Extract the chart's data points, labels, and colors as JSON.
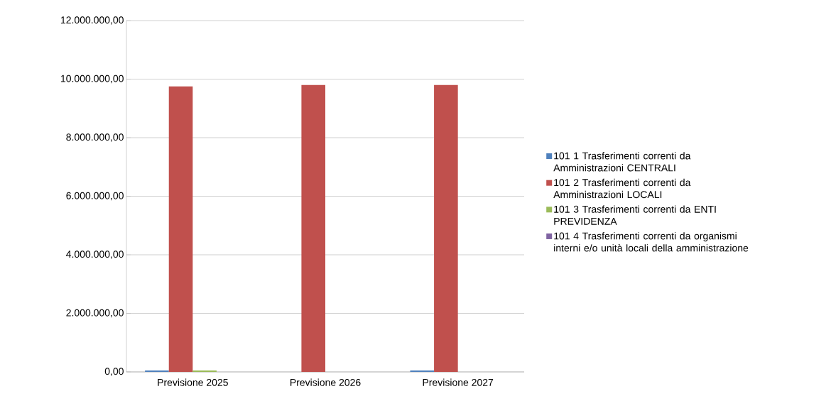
{
  "chart_data": {
    "type": "bar",
    "categories": [
      "Previsione 2025",
      "Previsione 2026",
      "Previsione 2027"
    ],
    "series": [
      {
        "name": "101 1 Trasferimenti correnti da Amministrazioni CENTRALI",
        "color": "#4f81bd",
        "values": [
          50000,
          null,
          50000
        ]
      },
      {
        "name": "101 2 Trasferimenti correnti da Amministrazioni LOCALI",
        "color": "#c0504d",
        "values": [
          9750000,
          9800000,
          9800000
        ]
      },
      {
        "name": "101 3 Trasferimenti correnti da ENTI PREVIDENZA",
        "color": "#9bbb59",
        "values": [
          50000,
          0,
          0
        ]
      },
      {
        "name": "101 4 Trasferimenti correnti da organismi interni e/o unità locali della amministrazione",
        "color": "#8064a2",
        "values": [
          null,
          null,
          null
        ]
      }
    ],
    "ylim": [
      0,
      12000000
    ],
    "yticks": [
      {
        "value": 0,
        "label": "0,00"
      },
      {
        "value": 2000000,
        "label": "2.000.000,00"
      },
      {
        "value": 4000000,
        "label": "4.000.000,00"
      },
      {
        "value": 6000000,
        "label": "6.000.000,00"
      },
      {
        "value": 8000000,
        "label": "8.000.000,00"
      },
      {
        "value": 10000000,
        "label": "10.000.000,00"
      },
      {
        "value": 12000000,
        "label": "12.000.000,00"
      }
    ],
    "grid": "y",
    "legend": "right"
  }
}
